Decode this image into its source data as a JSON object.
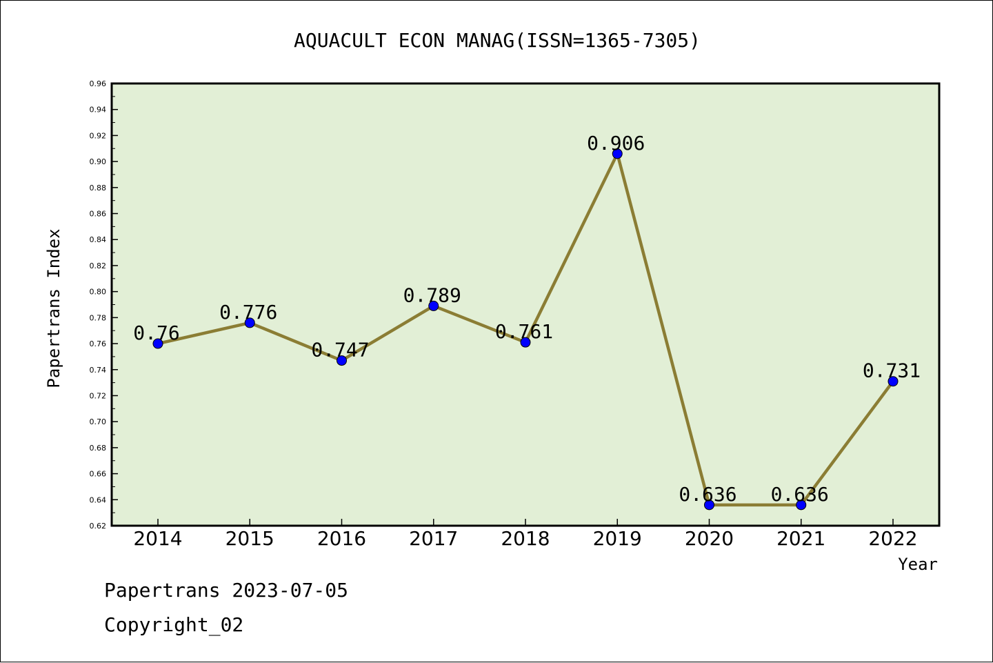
{
  "chart_data": {
    "type": "line",
    "title": "AQUACULT ECON MANAG(ISSN=1365-7305)",
    "xlabel": "Year",
    "ylabel": "Papertrans Index",
    "categories": [
      "2014",
      "2015",
      "2016",
      "2017",
      "2018",
      "2019",
      "2020",
      "2021",
      "2022"
    ],
    "values": [
      0.76,
      0.776,
      0.747,
      0.789,
      0.761,
      0.906,
      0.636,
      0.636,
      0.731
    ],
    "data_labels": [
      "0.76",
      "0.776",
      "0.747",
      "0.789",
      "0.761",
      "0.906",
      "0.636",
      "0.636",
      "0.731"
    ],
    "ylim": [
      0.62,
      0.96
    ],
    "yticks": [
      "0.62",
      "0.64",
      "0.66",
      "0.68",
      "0.70",
      "0.72",
      "0.74",
      "0.76",
      "0.78",
      "0.80",
      "0.82",
      "0.84",
      "0.86",
      "0.88",
      "0.90",
      "0.92",
      "0.94",
      "0.96"
    ],
    "grid": false,
    "colors": {
      "plot_background": "#e2efd6",
      "line": "#8b7d34",
      "marker": "#0000ff"
    }
  },
  "footer": {
    "line1": "Papertrans 2023-07-05",
    "line2": "Copyright_02"
  }
}
